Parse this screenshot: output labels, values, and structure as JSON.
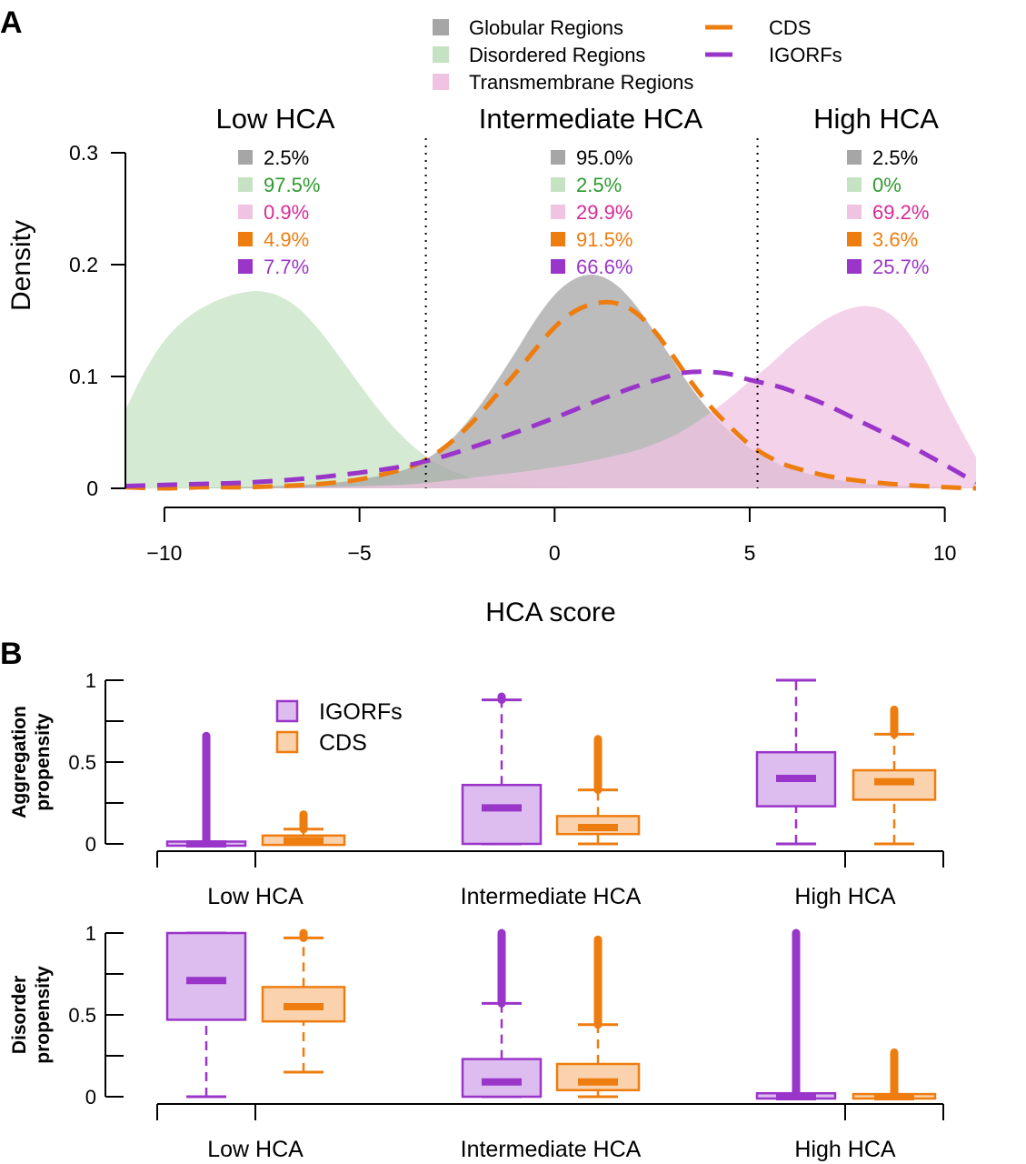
{
  "panels": {
    "a": "A",
    "b": "B"
  },
  "colors": {
    "globular": "#a6a6a6",
    "disordered": "#c5e3c3",
    "transmembrane": "#f0c3e2",
    "cds": "#ee7d10",
    "igorfs": "#9a35c9",
    "green_text": "#2e9a2e",
    "pink_text": "#d52a96",
    "orange_text": "#ee7d10",
    "purple_text": "#9a35c9",
    "igorf_box_fill": "#ddbcef",
    "cds_box_fill": "#fad2ad"
  },
  "chart_data": [
    {
      "type": "area",
      "panel": "A",
      "xlabel": "HCA score",
      "ylabel": "Density",
      "xlim": [
        -11,
        10.8
      ],
      "ylim": [
        0,
        0.3
      ],
      "x_ticks": [
        -10,
        -5,
        0,
        5,
        10
      ],
      "x_tick_labels": [
        "−10",
        "−5",
        "0",
        "5",
        "10"
      ],
      "y_ticks": [
        0,
        0.1,
        0.2,
        0.3
      ],
      "y_tick_labels": [
        "0",
        "0.1",
        "0.2",
        "0.3"
      ],
      "legend": {
        "placement": "top",
        "entries": [
          "Globular Regions",
          "Disordered Regions",
          "Transmembrane Regions",
          "CDS",
          "IGORFs"
        ]
      },
      "thresholds": [
        -3.3,
        5.2
      ],
      "regions": [
        {
          "title": "Low HCA",
          "percentages": [
            "2.5%",
            "97.5%",
            "0.9%",
            "4.9%",
            "7.7%"
          ]
        },
        {
          "title": "Intermediate HCA",
          "percentages": [
            "95.0%",
            "2.5%",
            "29.9%",
            "91.5%",
            "66.6%"
          ]
        },
        {
          "title": "High HCA",
          "percentages": [
            "2.5%",
            "0%",
            "69.2%",
            "3.6%",
            "25.7%"
          ]
        }
      ],
      "series": [
        {
          "name": "Disordered Regions",
          "style": "filled",
          "x": [
            -11,
            -10.5,
            -10,
            -9.5,
            -9,
            -8.5,
            -8,
            -7.5,
            -7,
            -6.5,
            -6,
            -5.5,
            -5,
            -4.5,
            -4,
            -3.5,
            -3,
            -2.5,
            -2,
            -1.5,
            -1,
            0,
            1
          ],
          "y": [
            0.07,
            0.105,
            0.132,
            0.15,
            0.162,
            0.17,
            0.175,
            0.176,
            0.171,
            0.159,
            0.14,
            0.117,
            0.093,
            0.07,
            0.05,
            0.034,
            0.022,
            0.014,
            0.008,
            0.005,
            0.003,
            0.001,
            0.0
          ]
        },
        {
          "name": "Globular Regions",
          "style": "filled",
          "x": [
            -11,
            -10,
            -8,
            -6,
            -5,
            -4,
            -3.5,
            -3,
            -2.5,
            -2,
            -1.5,
            -1,
            -0.5,
            0,
            0.5,
            1,
            1.5,
            2,
            2.5,
            3,
            3.5,
            4,
            4.5,
            5,
            5.5,
            6,
            7,
            8,
            9,
            10,
            10.8
          ],
          "y": [
            0.0,
            0.0,
            0.001,
            0.004,
            0.008,
            0.015,
            0.022,
            0.033,
            0.049,
            0.07,
            0.095,
            0.122,
            0.15,
            0.173,
            0.187,
            0.191,
            0.184,
            0.167,
            0.143,
            0.116,
            0.09,
            0.068,
            0.05,
            0.036,
            0.026,
            0.018,
            0.009,
            0.004,
            0.002,
            0.001,
            0.0
          ]
        },
        {
          "name": "Transmembrane Regions",
          "style": "filled",
          "x": [
            -11,
            -8,
            -6,
            -4,
            -3,
            -2,
            -1,
            0,
            1,
            2,
            2.5,
            3,
            3.5,
            4,
            4.5,
            5,
            5.5,
            6,
            6.5,
            7,
            7.5,
            8,
            8.5,
            9,
            9.5,
            10,
            10.5,
            10.8
          ],
          "y": [
            0.0,
            0.0,
            0.001,
            0.003,
            0.006,
            0.01,
            0.014,
            0.019,
            0.025,
            0.033,
            0.039,
            0.046,
            0.056,
            0.068,
            0.081,
            0.096,
            0.11,
            0.126,
            0.14,
            0.152,
            0.16,
            0.163,
            0.158,
            0.142,
            0.115,
            0.08,
            0.047,
            0.028
          ]
        },
        {
          "name": "CDS",
          "style": "dashed",
          "x": [
            -11,
            -10,
            -9,
            -8,
            -7,
            -6,
            -5,
            -4,
            -3.5,
            -3,
            -2.5,
            -2,
            -1.5,
            -1,
            -0.5,
            0,
            0.5,
            1,
            1.5,
            2,
            2.5,
            3,
            3.5,
            4,
            4.5,
            5,
            5.5,
            6,
            7,
            8,
            9,
            10,
            10.8
          ],
          "y": [
            0.001,
            0.0,
            0.001,
            0.001,
            0.002,
            0.004,
            0.008,
            0.016,
            0.022,
            0.032,
            0.046,
            0.063,
            0.083,
            0.103,
            0.124,
            0.144,
            0.158,
            0.165,
            0.166,
            0.159,
            0.143,
            0.12,
            0.095,
            0.073,
            0.055,
            0.039,
            0.028,
            0.02,
            0.011,
            0.006,
            0.003,
            0.001,
            0.0
          ]
        },
        {
          "name": "IGORFs",
          "style": "dashed",
          "x": [
            -11,
            -10,
            -9,
            -8,
            -7,
            -6,
            -5,
            -4,
            -3,
            -2,
            -1,
            0,
            1,
            2,
            3,
            3.5,
            4,
            4.5,
            5,
            5.5,
            6,
            7,
            8,
            9,
            10,
            10.8
          ],
          "y": [
            0.002,
            0.003,
            0.004,
            0.005,
            0.007,
            0.01,
            0.014,
            0.019,
            0.027,
            0.038,
            0.05,
            0.063,
            0.077,
            0.09,
            0.101,
            0.104,
            0.104,
            0.102,
            0.097,
            0.093,
            0.088,
            0.074,
            0.057,
            0.04,
            0.021,
            0.005
          ]
        }
      ]
    },
    {
      "type": "box",
      "panel": "B",
      "ylabel": [
        "Aggregation",
        "propensity"
      ],
      "ylim": [
        0,
        1
      ],
      "y_ticks": [
        0,
        0.5,
        1
      ],
      "y_tick_labels": [
        "0",
        "0.5",
        "1"
      ],
      "categories": [
        "Low HCA",
        "Intermediate HCA",
        "High HCA"
      ],
      "legend": {
        "placement": "top-left",
        "entries": [
          "IGORFs",
          "CDS"
        ]
      },
      "series": [
        {
          "name": "IGORFs",
          "boxes": [
            {
              "whisker_low": 0,
              "q1": 0,
              "median": 0.0,
              "q3": 0.003,
              "whisker_high": 0.005,
              "outlier_max": 0.66
            },
            {
              "whisker_low": 0,
              "q1": 0,
              "median": 0.22,
              "q3": 0.36,
              "whisker_high": 0.88,
              "outlier_max": 0.9
            },
            {
              "whisker_low": 0,
              "q1": 0.23,
              "median": 0.4,
              "q3": 0.56,
              "whisker_high": 1.0,
              "outlier_max": null
            }
          ]
        },
        {
          "name": "CDS",
          "boxes": [
            {
              "whisker_low": 0,
              "q1": 0.005,
              "median": 0.02,
              "q3": 0.04,
              "whisker_high": 0.09,
              "outlier_max": 0.18
            },
            {
              "whisker_low": 0,
              "q1": 0.06,
              "median": 0.1,
              "q3": 0.17,
              "whisker_high": 0.33,
              "outlier_max": 0.64
            },
            {
              "whisker_low": 0,
              "q1": 0.27,
              "median": 0.38,
              "q3": 0.45,
              "whisker_high": 0.67,
              "outlier_max": 0.82
            }
          ]
        }
      ]
    },
    {
      "type": "box",
      "panel": "B",
      "ylabel": [
        "Disorder",
        "propensity"
      ],
      "ylim": [
        0,
        1
      ],
      "y_ticks": [
        0,
        0.5,
        1
      ],
      "y_tick_labels": [
        "0",
        "0.5",
        "1"
      ],
      "categories": [
        "Low HCA",
        "Intermediate HCA",
        "High HCA"
      ],
      "series": [
        {
          "name": "IGORFs",
          "boxes": [
            {
              "whisker_low": 0,
              "q1": 0.47,
              "median": 0.71,
              "q3": 1.0,
              "whisker_high": 1.0,
              "outlier_max": null
            },
            {
              "whisker_low": 0,
              "q1": 0,
              "median": 0.09,
              "q3": 0.23,
              "whisker_high": 0.57,
              "outlier_max": 1.0
            },
            {
              "whisker_low": 0,
              "q1": 0,
              "median": 0.0,
              "q3": 0.01,
              "whisker_high": 0.015,
              "outlier_max": 1.0
            }
          ]
        },
        {
          "name": "CDS",
          "boxes": [
            {
              "whisker_low": 0.15,
              "q1": 0.46,
              "median": 0.55,
              "q3": 0.67,
              "whisker_high": 0.97,
              "outlier_max": 1.0
            },
            {
              "whisker_low": 0,
              "q1": 0.04,
              "median": 0.09,
              "q3": 0.2,
              "whisker_high": 0.44,
              "outlier_max": 0.96
            },
            {
              "whisker_low": 0,
              "q1": 0,
              "median": 0.0,
              "q3": 0.005,
              "whisker_high": 0.01,
              "outlier_max": 0.27
            }
          ]
        }
      ]
    }
  ]
}
